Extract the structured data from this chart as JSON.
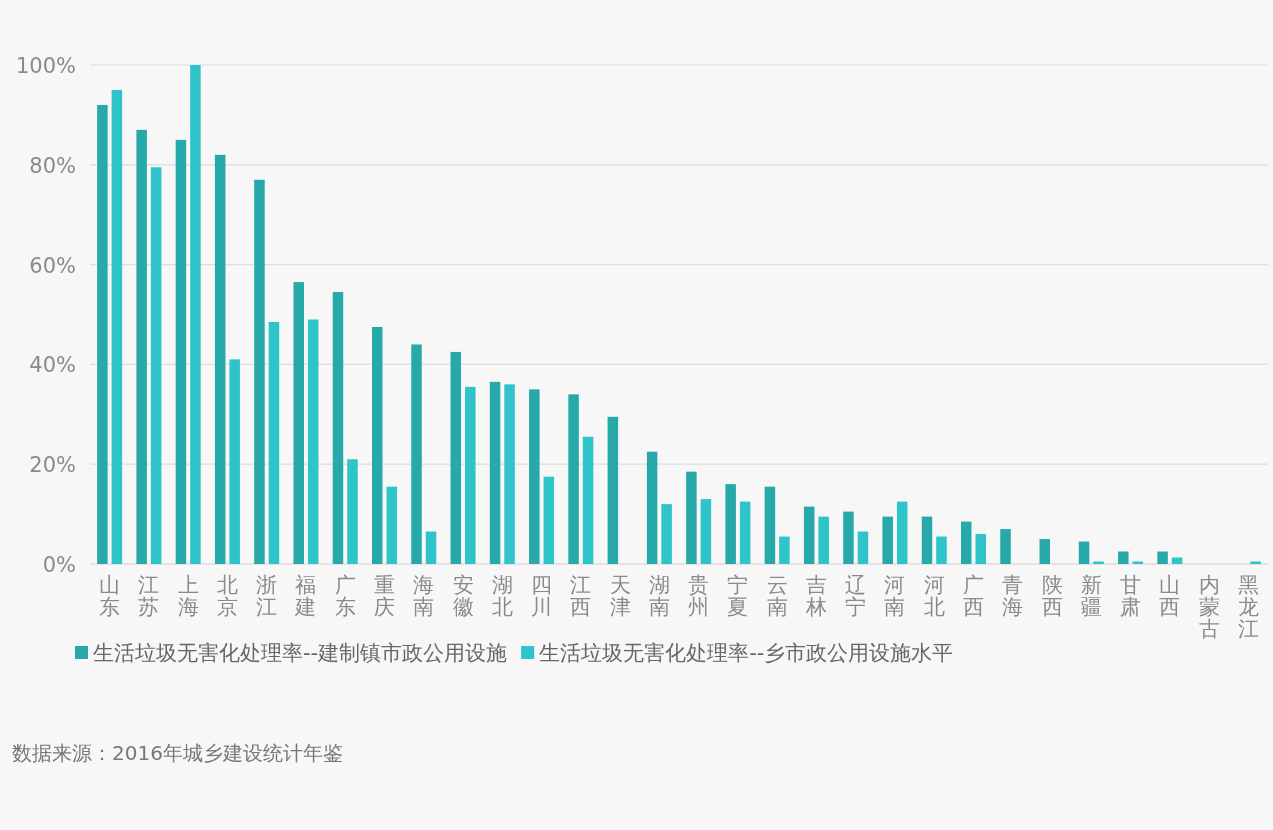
{
  "chart_data": {
    "type": "bar",
    "categories": [
      "山东",
      "江苏",
      "上海",
      "北京",
      "浙江",
      "福建",
      "广东",
      "重庆",
      "海南",
      "安徽",
      "湖北",
      "四川",
      "江西",
      "天津",
      "湖南",
      "贵州",
      "宁夏",
      "云南",
      "吉林",
      "辽宁",
      "河南",
      "河北",
      "广西",
      "青海",
      "陕西",
      "新疆",
      "甘肃",
      "山西",
      "内蒙古",
      "黑龙江"
    ],
    "series": [
      {
        "name": "生活垃圾无害化处理率--建制镇市政公用设施",
        "color": "#26a9a8",
        "values": [
          92,
          87,
          85,
          82,
          77,
          56.5,
          54.5,
          47.5,
          44,
          42.5,
          36.5,
          35,
          34,
          29.5,
          22.5,
          18.5,
          16,
          15.5,
          11.5,
          10.5,
          9.5,
          9.5,
          8.5,
          7,
          5,
          4.5,
          2.5,
          2.5,
          null,
          null
        ]
      },
      {
        "name": "生活垃圾无害化处理率--乡市政公用设施水平",
        "color": "#2ec4ca",
        "values": [
          95,
          79.5,
          100,
          41,
          48.5,
          49,
          21,
          15.5,
          6.5,
          35.5,
          36,
          17.5,
          25.5,
          null,
          12,
          13,
          12.5,
          5.5,
          9.5,
          6.5,
          12.5,
          5.5,
          6,
          null,
          null,
          0.5,
          0.5,
          1.3,
          null,
          0.5
        ]
      }
    ],
    "ylim": [
      0,
      100
    ],
    "yticks": [
      {
        "value": 0,
        "label": "0%"
      },
      {
        "value": 20,
        "label": "20%"
      },
      {
        "value": 40,
        "label": "40%"
      },
      {
        "value": 60,
        "label": "60%"
      },
      {
        "value": 80,
        "label": "80%"
      },
      {
        "value": 100,
        "label": "100%"
      }
    ],
    "grid": "y",
    "legend": "bottom",
    "annotations": [
      "数据来源：2016年城乡建设统计年鉴"
    ]
  }
}
